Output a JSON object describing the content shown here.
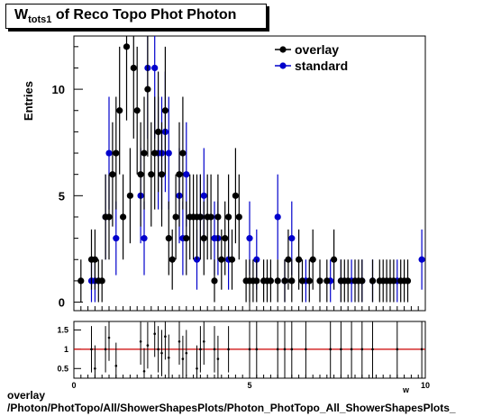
{
  "title": {
    "main": "W",
    "sub": "tots1",
    "rest": " of Reco Topo Phot Photon"
  },
  "footer": {
    "line1": "overlay",
    "line2": "/Photon/PhotTopo/All/ShowerShapesPlots/Photon_PhotTopo_All_ShowerShapesPlots_"
  },
  "colors": {
    "overlay": "#000000",
    "standard": "#0000cc",
    "ratio_line": "#cc0000"
  },
  "chart_data": [
    {
      "type": "scatter",
      "ylabel": "Entries",
      "xlim": [
        0,
        10
      ],
      "ylim": [
        -0.4,
        12.5
      ],
      "x_ticks": [
        "0",
        "5",
        "10"
      ],
      "y_ticks": [
        "0",
        "5",
        "10"
      ],
      "legend": {
        "position": "top-right",
        "entries": [
          "overlay",
          "standard"
        ]
      },
      "series": [
        {
          "name": "overlay",
          "x": [
            0.2,
            0.5,
            0.6,
            0.7,
            0.8,
            0.9,
            1.0,
            1.1,
            1.2,
            1.3,
            1.4,
            1.5,
            1.6,
            1.7,
            1.8,
            1.9,
            2.0,
            2.1,
            2.2,
            2.3,
            2.4,
            2.5,
            2.6,
            2.7,
            2.8,
            2.9,
            3.0,
            3.1,
            3.2,
            3.3,
            3.4,
            3.5,
            3.6,
            3.7,
            3.8,
            3.9,
            4.0,
            4.1,
            4.2,
            4.3,
            4.4,
            4.5,
            4.6,
            4.7,
            4.9,
            5.0,
            5.1,
            5.2,
            5.4,
            5.5,
            5.6,
            5.8,
            6.0,
            6.1,
            6.2,
            6.4,
            6.5,
            6.7,
            6.8,
            7.0,
            7.2,
            7.4,
            7.6,
            7.7,
            7.8,
            8.0,
            8.1,
            8.2,
            8.5,
            8.7,
            8.8,
            8.9,
            9.0,
            9.1,
            9.3,
            9.4,
            9.5
          ],
          "y": [
            1,
            2,
            2,
            1,
            1,
            4,
            4,
            6,
            7,
            9,
            4,
            12,
            5,
            11,
            9,
            6,
            7,
            10,
            6,
            7,
            8,
            6,
            9,
            3,
            2,
            4,
            6,
            7,
            3,
            4,
            4,
            4,
            4,
            3,
            4,
            4,
            1,
            4,
            2,
            3,
            4,
            2,
            5,
            4,
            1,
            1,
            1,
            1,
            1,
            1,
            1,
            1,
            1,
            2,
            1,
            2,
            1,
            1,
            2,
            1,
            1,
            2,
            1,
            1,
            1,
            1,
            1,
            1,
            1,
            1,
            1,
            1,
            1,
            1,
            1,
            1,
            1
          ]
        },
        {
          "name": "standard",
          "x": [
            0.5,
            0.6,
            0.9,
            1.0,
            1.2,
            1.9,
            2.0,
            2.1,
            2.3,
            2.4,
            2.5,
            2.6,
            2.7,
            3.0,
            3.1,
            3.2,
            3.5,
            3.6,
            3.7,
            4.0,
            4.1,
            4.4,
            5.0,
            5.2,
            5.8,
            6.0,
            6.2,
            6.6,
            7.3,
            7.6,
            7.9,
            8.2,
            8.5,
            9.2,
            9.9
          ],
          "y": [
            1,
            1,
            4,
            7,
            3,
            5,
            3,
            11,
            11,
            7,
            7,
            8,
            7,
            5,
            3,
            6,
            2,
            4,
            5,
            3,
            3,
            2,
            3,
            2,
            4,
            1,
            3,
            1,
            1,
            1,
            1,
            1,
            1,
            1,
            2
          ]
        }
      ]
    },
    {
      "type": "scatter",
      "xlabel": "w",
      "xlim": [
        0,
        10
      ],
      "ylim": [
        0.25,
        1.72
      ],
      "x_ticks": [
        "0",
        "5",
        "10"
      ],
      "y_ticks": [
        "0.5",
        "1",
        "1.5"
      ],
      "reference_line": 1,
      "series": [
        {
          "name": "ratio",
          "x": [
            0.5,
            0.6,
            0.9,
            1.0,
            1.2,
            1.9,
            2.0,
            2.1,
            2.3,
            2.4,
            2.5,
            2.6,
            2.7,
            3.0,
            3.1,
            3.2,
            3.5,
            3.6,
            3.7,
            4.0,
            4.1,
            4.4,
            5.0,
            5.2,
            5.8,
            6.0,
            6.2,
            6.6,
            7.3,
            7.6,
            7.9,
            8.2,
            8.5,
            9.2,
            9.9
          ],
          "y": [
            1.0,
            0.5,
            1.0,
            1.3,
            0.57,
            1.2,
            0.43,
            1.1,
            1.4,
            1.0,
            0.9,
            1.33,
            0.78,
            1.2,
            0.75,
            0.9,
            0.5,
            1.0,
            1.2,
            1.0,
            0.75,
            1.0,
            1.0,
            1.0,
            1.0,
            1.0,
            1.0,
            1.0,
            1.0,
            1.0,
            1.0,
            1.0,
            1.0,
            1.0,
            1.0
          ]
        }
      ]
    }
  ]
}
